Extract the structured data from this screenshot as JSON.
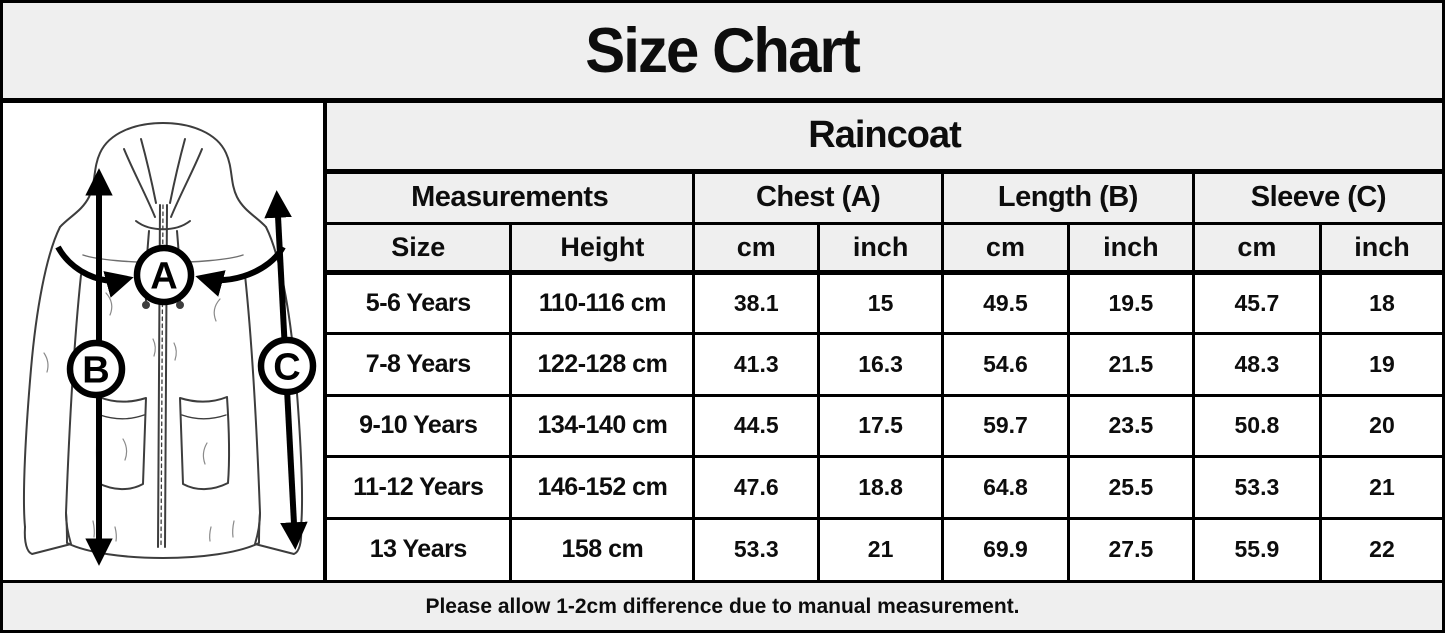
{
  "title": "Size Chart",
  "illustration": {
    "description": "hooded raincoat line sketch with measurement arrows",
    "labels": {
      "a": "A",
      "b": "B",
      "c": "C"
    }
  },
  "table": {
    "product": "Raincoat",
    "group_headers": [
      {
        "label": "Measurements"
      },
      {
        "label": "Chest (A)"
      },
      {
        "label": "Length (B)"
      },
      {
        "label": "Sleeve (C)"
      }
    ],
    "sub_headers": [
      "Size",
      "Height",
      "cm",
      "inch",
      "cm",
      "inch",
      "cm",
      "inch"
    ]
  },
  "chart_data": {
    "type": "table",
    "title": "Size Chart",
    "product": "Raincoat",
    "columns": [
      "Size",
      "Height",
      "Chest (A) cm",
      "Chest (A) inch",
      "Length (B) cm",
      "Length (B) inch",
      "Sleeve (C) cm",
      "Sleeve (C) inch"
    ],
    "rows": [
      [
        "5-6 Years",
        "110-116 cm",
        38.1,
        15,
        49.5,
        19.5,
        45.7,
        18
      ],
      [
        "7-8 Years",
        "122-128 cm",
        41.3,
        16.3,
        54.6,
        21.5,
        48.3,
        19
      ],
      [
        "9-10 Years",
        "134-140 cm",
        44.5,
        17.5,
        59.7,
        23.5,
        50.8,
        20
      ],
      [
        "11-12 Years",
        "146-152 cm",
        47.6,
        18.8,
        64.8,
        25.5,
        53.3,
        21
      ],
      [
        "13 Years",
        "158 cm",
        53.3,
        21,
        69.9,
        27.5,
        55.9,
        22
      ]
    ],
    "note": "Please allow 1-2cm difference due to manual measurement."
  },
  "footer": {
    "note": "Please allow 1-2cm difference due to manual measurement."
  },
  "colors": {
    "band_bg": "#efefef",
    "cell_bg": "#ffffff",
    "border": "#000000",
    "text": "#0d0d0d"
  }
}
